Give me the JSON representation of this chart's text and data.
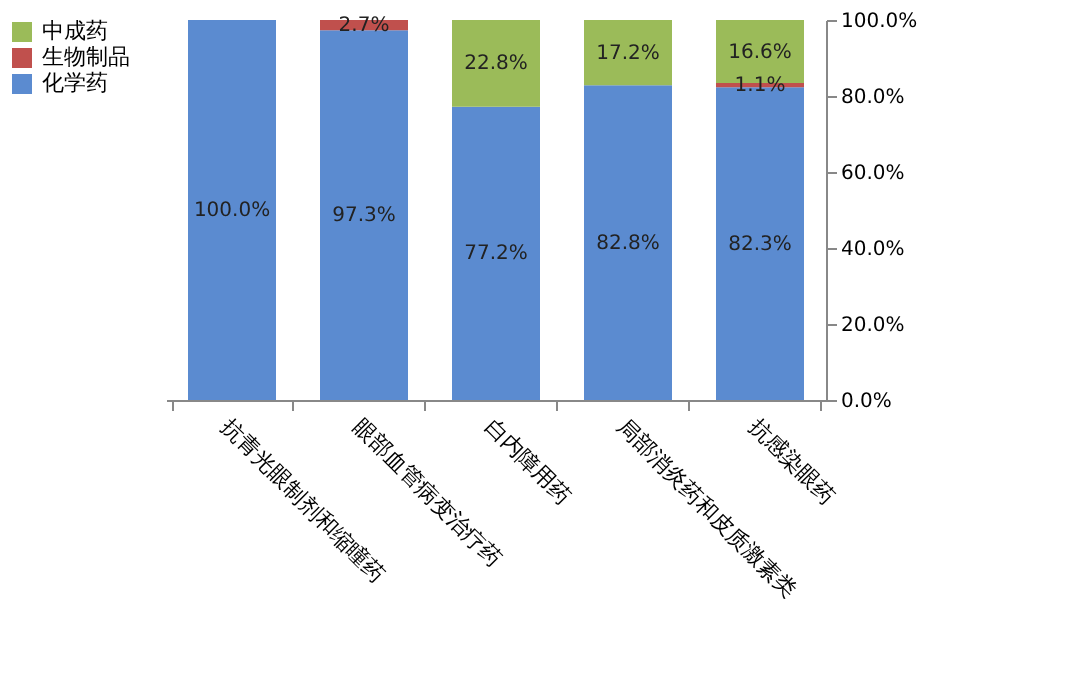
{
  "chart_data": {
    "type": "bar",
    "stacked": true,
    "categories": [
      "抗青光眼制剂和缩瞳药",
      "眼部血管病变治疗药",
      "白内障用药",
      "局部消炎药和皮质激素类",
      "抗感染眼药"
    ],
    "series": [
      {
        "name": "化学药",
        "color": "#5b8bd0",
        "values": [
          100.0,
          97.3,
          77.2,
          82.8,
          82.3
        ],
        "value_labels": [
          "100.0%",
          "97.3%",
          "77.2%",
          "82.8%",
          "82.3%"
        ]
      },
      {
        "name": "生物制品",
        "color": "#c0504d",
        "values": [
          0,
          2.7,
          0,
          0,
          1.1
        ],
        "value_labels": [
          null,
          "2.7%",
          null,
          null,
          "1.1%"
        ]
      },
      {
        "name": "中成药",
        "color": "#9bbb59",
        "values": [
          0,
          0,
          22.8,
          17.2,
          16.6
        ],
        "value_labels": [
          null,
          null,
          "22.8%",
          "17.2%",
          "16.6%"
        ]
      }
    ],
    "ylim": [
      0,
      100
    ],
    "yticks": [
      {
        "value": 0,
        "label": "0.0%"
      },
      {
        "value": 20,
        "label": "20.0%"
      },
      {
        "value": 40,
        "label": "40.0%"
      },
      {
        "value": 60,
        "label": "60.0%"
      },
      {
        "value": 80,
        "label": "80.0%"
      },
      {
        "value": 100,
        "label": "100.0%"
      }
    ],
    "legend": "left",
    "grid": false
  }
}
